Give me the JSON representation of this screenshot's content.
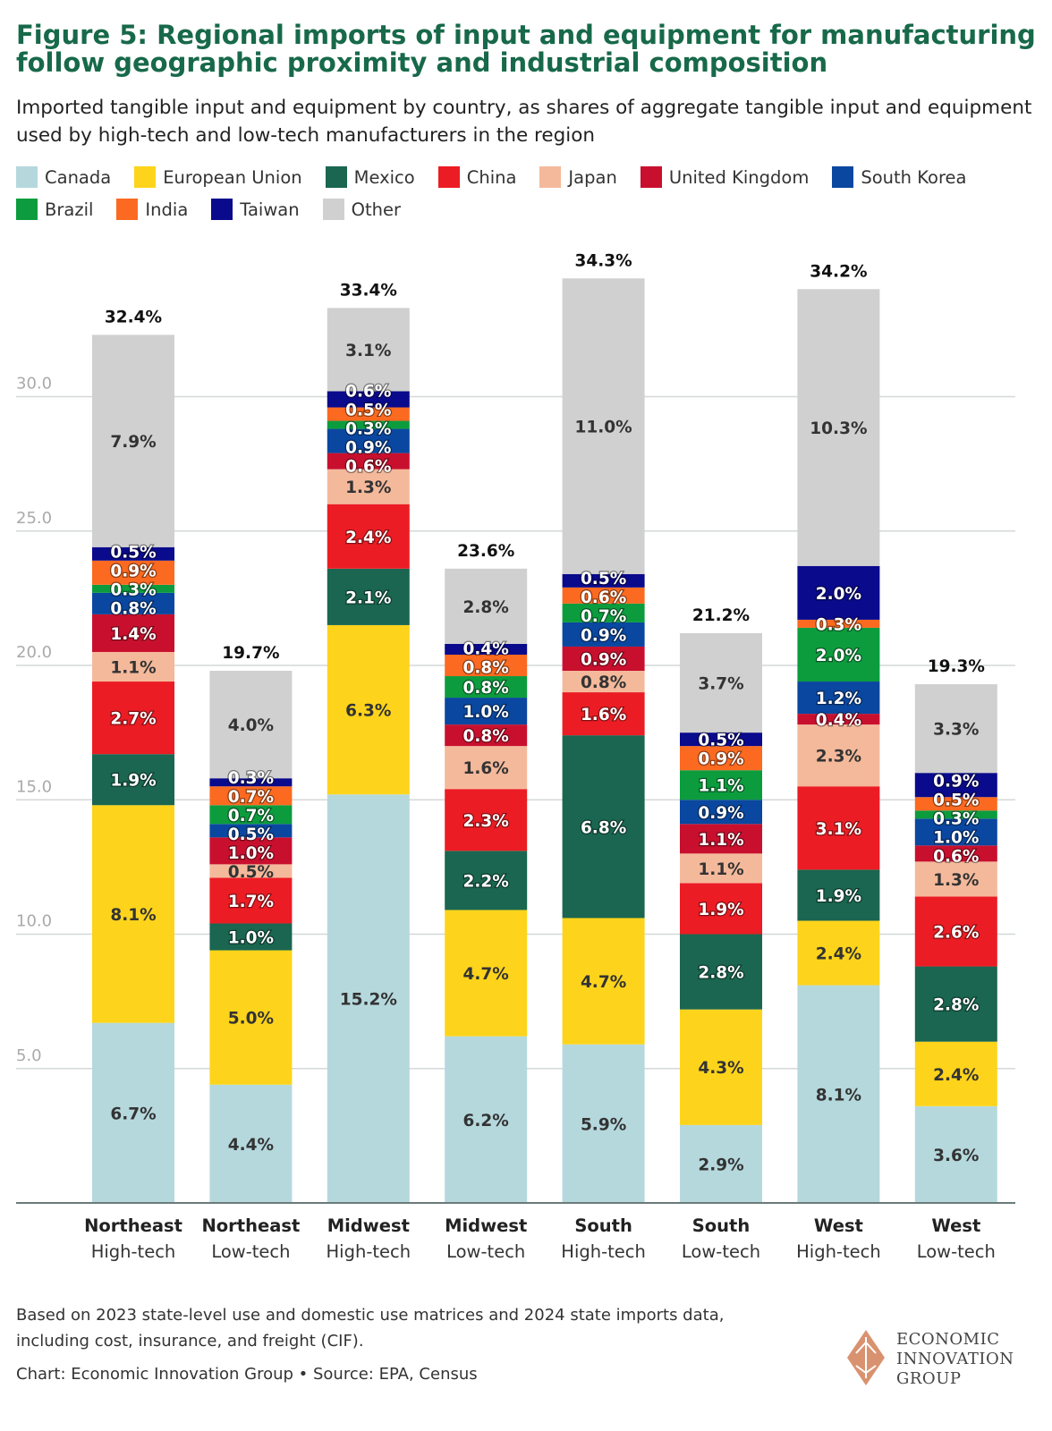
{
  "chart_data": {
    "type": "bar",
    "stacked": true,
    "title": "Figure 5: Regional imports of input and equipment for manufacturing follow geographic proximity and industrial composition",
    "subtitle": "Imported tangible input and equipment by country, as shares of aggregate tangible input and equipment used by high-tech and low-tech manufacturers in the region",
    "xlabel": "",
    "ylabel": "",
    "ylim": [
      0,
      35
    ],
    "yticks": [
      "5.0",
      "10.0",
      "15.0",
      "20.0",
      "25.0",
      "30.0"
    ],
    "ytick_values": [
      5,
      10,
      15,
      20,
      25,
      30
    ],
    "grid": true,
    "legend_position": "top",
    "categories": [
      {
        "region": "Northeast",
        "type": "High-tech"
      },
      {
        "region": "Northeast",
        "type": "Low-tech"
      },
      {
        "region": "Midwest",
        "type": "High-tech"
      },
      {
        "region": "Midwest",
        "type": "Low-tech"
      },
      {
        "region": "South",
        "type": "High-tech"
      },
      {
        "region": "South",
        "type": "Low-tech"
      },
      {
        "region": "West",
        "type": "High-tech"
      },
      {
        "region": "West",
        "type": "Low-tech"
      }
    ],
    "totals": [
      "32.4%",
      "19.7%",
      "33.4%",
      "23.6%",
      "34.3%",
      "21.2%",
      "34.2%",
      "19.3%"
    ],
    "series": [
      {
        "name": "Canada",
        "color": "#b5d8dd",
        "label_dark": true,
        "values": [
          6.7,
          4.4,
          15.2,
          6.2,
          5.9,
          2.9,
          8.1,
          3.6
        ]
      },
      {
        "name": "European Union",
        "color": "#fdd41b",
        "label_dark": true,
        "values": [
          8.1,
          5.0,
          6.3,
          4.7,
          4.7,
          4.3,
          2.4,
          2.4
        ]
      },
      {
        "name": "Mexico",
        "color": "#1a6650",
        "label_dark": false,
        "values": [
          1.9,
          1.0,
          2.1,
          2.2,
          6.8,
          2.8,
          1.9,
          2.8
        ]
      },
      {
        "name": "China",
        "color": "#ec1c24",
        "label_dark": false,
        "values": [
          2.7,
          1.7,
          2.4,
          2.3,
          1.6,
          1.9,
          3.1,
          2.6
        ]
      },
      {
        "name": "Japan",
        "color": "#f4b99b",
        "label_dark": true,
        "values": [
          1.1,
          0.5,
          1.3,
          1.6,
          0.8,
          1.1,
          2.3,
          1.3
        ]
      },
      {
        "name": "United Kingdom",
        "color": "#c8102e",
        "label_dark": false,
        "values": [
          1.4,
          1.0,
          0.6,
          0.8,
          0.9,
          1.1,
          0.4,
          0.6
        ]
      },
      {
        "name": "South Korea",
        "color": "#0a47a0",
        "label_dark": false,
        "values": [
          0.8,
          0.5,
          0.9,
          1.0,
          0.9,
          0.9,
          1.2,
          1.0
        ]
      },
      {
        "name": "Brazil",
        "color": "#0c9c3e",
        "label_dark": false,
        "values": [
          0.3,
          0.7,
          0.3,
          0.8,
          0.7,
          1.1,
          2.0,
          0.3
        ]
      },
      {
        "name": "India",
        "color": "#fb6a20",
        "label_dark": false,
        "values": [
          0.9,
          0.7,
          0.5,
          0.8,
          0.6,
          0.9,
          0.3,
          0.5
        ]
      },
      {
        "name": "Taiwan",
        "color": "#0a0a8c",
        "label_dark": false,
        "values": [
          0.5,
          0.3,
          0.6,
          0.4,
          0.5,
          0.5,
          2.0,
          0.9
        ]
      },
      {
        "name": "Other",
        "color": "#d0d0d0",
        "label_dark": true,
        "values": [
          7.9,
          4.0,
          3.1,
          2.8,
          11.0,
          3.7,
          10.3,
          3.3
        ]
      }
    ]
  },
  "notes": {
    "line1": "Based on 2023 state-level use and domestic use matrices and 2024 state imports data,",
    "line2": "including cost, insurance, and freight (CIF).",
    "source": "Chart: Economic Innovation Group • Source: EPA, Census"
  },
  "logo": {
    "line1": "ECONOMIC",
    "line2": "INNOVATION",
    "line3": "GROUP"
  }
}
